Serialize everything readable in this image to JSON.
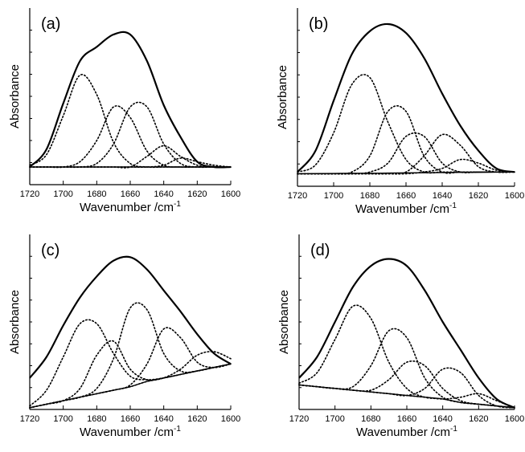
{
  "chart_data": [
    {
      "type": "line",
      "label": "(a)",
      "xlabel": "Wavenumber /cm",
      "xlabel_exponent": "-1",
      "ylabel": "Absorbance",
      "x": [
        1720,
        1710,
        1700,
        1690,
        1680,
        1670,
        1660,
        1650,
        1640,
        1630,
        1620,
        1610,
        1600
      ],
      "xlim": [
        1720,
        1600
      ],
      "xticks": [
        1720,
        1700,
        1680,
        1660,
        1640,
        1620,
        1600
      ],
      "ylim": [
        0,
        1
      ],
      "series": [
        {
          "color": "#000000",
          "dash": "solid",
          "width": 2.2,
          "values": [
            0.1,
            0.2,
            0.46,
            0.7,
            0.78,
            0.85,
            0.85,
            0.7,
            0.45,
            0.27,
            0.13,
            0.1,
            0.1
          ]
        },
        {
          "color": "#000000",
          "dash": "solid",
          "width": 1.4,
          "values": [
            0.1,
            0.1,
            0.1,
            0.1,
            0.1,
            0.1,
            0.1,
            0.1,
            0.1,
            0.1,
            0.1,
            0.1,
            0.1
          ]
        },
        {
          "color": "#000000",
          "dash": "dotted",
          "width": 1.6,
          "values": [
            0.11,
            0.17,
            0.39,
            0.62,
            0.51,
            0.24,
            0.12,
            0.1,
            0.1,
            0.1,
            0.1,
            0.1,
            0.1
          ]
        },
        {
          "color": "#000000",
          "dash": "dotted",
          "width": 1.6,
          "values": [
            0.1,
            0.1,
            0.1,
            0.13,
            0.25,
            0.44,
            0.38,
            0.19,
            0.11,
            0.1,
            0.1,
            0.1,
            0.1
          ]
        },
        {
          "color": "#000000",
          "dash": "dotted",
          "width": 1.6,
          "values": [
            0.1,
            0.1,
            0.1,
            0.1,
            0.12,
            0.23,
            0.44,
            0.44,
            0.23,
            0.12,
            0.1,
            0.1,
            0.1
          ]
        },
        {
          "color": "#000000",
          "dash": "dotted",
          "width": 1.6,
          "values": [
            0.1,
            0.1,
            0.1,
            0.1,
            0.1,
            0.1,
            0.1,
            0.16,
            0.22,
            0.16,
            0.11,
            0.1,
            0.1
          ]
        },
        {
          "color": "#000000",
          "dash": "dotted",
          "width": 1.6,
          "values": [
            0.1,
            0.1,
            0.1,
            0.1,
            0.1,
            0.1,
            0.1,
            0.1,
            0.11,
            0.15,
            0.13,
            0.11,
            0.1
          ]
        }
      ]
    },
    {
      "type": "line",
      "label": "(b)",
      "xlabel": "Wavenumber /cm",
      "xlabel_exponent": "-1",
      "ylabel": "Absorbance",
      "x": [
        1720,
        1710,
        1700,
        1690,
        1680,
        1670,
        1660,
        1650,
        1640,
        1630,
        1620,
        1610,
        1600
      ],
      "xlim": [
        1720,
        1600
      ],
      "xticks": [
        1720,
        1700,
        1680,
        1660,
        1640,
        1620,
        1600
      ],
      "ylim": [
        0,
        1
      ],
      "series": [
        {
          "color": "#000000",
          "dash": "solid",
          "width": 2.2,
          "values": [
            0.08,
            0.2,
            0.48,
            0.74,
            0.87,
            0.91,
            0.86,
            0.72,
            0.52,
            0.34,
            0.2,
            0.1,
            0.08
          ]
        },
        {
          "color": "#000000",
          "dash": "solid",
          "width": 1.4,
          "values": [
            0.07,
            0.071,
            0.072,
            0.073,
            0.073,
            0.074,
            0.075,
            0.076,
            0.077,
            0.078,
            0.078,
            0.079,
            0.08
          ]
        },
        {
          "color": "#000000",
          "dash": "dotted",
          "width": 1.6,
          "values": [
            0.08,
            0.12,
            0.3,
            0.57,
            0.61,
            0.36,
            0.15,
            0.08,
            0.08,
            0.08,
            0.08,
            0.08,
            0.08
          ]
        },
        {
          "color": "#000000",
          "dash": "dotted",
          "width": 1.6,
          "values": [
            0.07,
            0.07,
            0.07,
            0.08,
            0.17,
            0.42,
            0.42,
            0.17,
            0.08,
            0.08,
            0.08,
            0.08,
            0.08
          ]
        },
        {
          "color": "#000000",
          "dash": "dotted",
          "width": 1.6,
          "values": [
            0.07,
            0.07,
            0.07,
            0.07,
            0.08,
            0.13,
            0.28,
            0.28,
            0.13,
            0.08,
            0.08,
            0.08,
            0.08
          ]
        },
        {
          "color": "#000000",
          "dash": "dotted",
          "width": 1.6,
          "values": [
            0.07,
            0.07,
            0.07,
            0.07,
            0.07,
            0.07,
            0.08,
            0.17,
            0.29,
            0.23,
            0.11,
            0.08,
            0.08
          ]
        },
        {
          "color": "#000000",
          "dash": "dotted",
          "width": 1.6,
          "values": [
            0.07,
            0.07,
            0.07,
            0.07,
            0.07,
            0.07,
            0.07,
            0.08,
            0.1,
            0.15,
            0.13,
            0.09,
            0.08
          ]
        }
      ]
    },
    {
      "type": "line",
      "label": "(c)",
      "xlabel": "Wavenumber /cm",
      "xlabel_exponent": "-1",
      "ylabel": "Absorbance",
      "x": [
        1720,
        1710,
        1700,
        1690,
        1680,
        1670,
        1660,
        1650,
        1640,
        1630,
        1620,
        1610,
        1600
      ],
      "xlim": [
        1720,
        1600
      ],
      "xticks": [
        1720,
        1700,
        1680,
        1660,
        1640,
        1620,
        1600
      ],
      "ylim": [
        0,
        1
      ],
      "series": [
        {
          "color": "#000000",
          "dash": "solid",
          "width": 2.2,
          "values": [
            0.18,
            0.3,
            0.48,
            0.64,
            0.76,
            0.85,
            0.87,
            0.8,
            0.68,
            0.56,
            0.43,
            0.32,
            0.26
          ]
        },
        {
          "color": "#000000",
          "dash": "solid",
          "width": 1.4,
          "values": [
            0.01,
            0.03,
            0.05,
            0.07,
            0.09,
            0.11,
            0.13,
            0.16,
            0.18,
            0.2,
            0.22,
            0.24,
            0.26
          ]
        },
        {
          "color": "#000000",
          "dash": "dotted",
          "width": 1.6,
          "values": [
            0.02,
            0.11,
            0.3,
            0.49,
            0.49,
            0.32,
            0.19,
            0.17,
            0.18,
            0.2,
            0.22,
            0.24,
            0.26
          ]
        },
        {
          "color": "#000000",
          "dash": "dotted",
          "width": 1.6,
          "values": [
            0.01,
            0.03,
            0.05,
            0.12,
            0.31,
            0.39,
            0.23,
            0.17,
            0.18,
            0.2,
            0.22,
            0.24,
            0.26
          ]
        },
        {
          "color": "#000000",
          "dash": "dotted",
          "width": 1.6,
          "values": [
            0.01,
            0.03,
            0.05,
            0.07,
            0.12,
            0.29,
            0.58,
            0.57,
            0.32,
            0.22,
            0.22,
            0.24,
            0.26
          ]
        },
        {
          "color": "#000000",
          "dash": "dotted",
          "width": 1.6,
          "values": [
            0.01,
            0.03,
            0.05,
            0.07,
            0.09,
            0.11,
            0.14,
            0.26,
            0.46,
            0.41,
            0.27,
            0.24,
            0.26
          ]
        },
        {
          "color": "#000000",
          "dash": "dotted",
          "width": 1.6,
          "values": [
            0.01,
            0.03,
            0.05,
            0.07,
            0.09,
            0.11,
            0.13,
            0.16,
            0.18,
            0.23,
            0.31,
            0.33,
            0.29
          ]
        }
      ]
    },
    {
      "type": "line",
      "label": "(d)",
      "xlabel": "Wavenumber /cm",
      "xlabel_exponent": "-1",
      "ylabel": "Absorbance",
      "x": [
        1720,
        1710,
        1700,
        1690,
        1680,
        1670,
        1660,
        1650,
        1640,
        1630,
        1620,
        1610,
        1600
      ],
      "xlim": [
        1720,
        1600
      ],
      "xticks": [
        1720,
        1700,
        1680,
        1660,
        1640,
        1620,
        1600
      ],
      "ylim": [
        0,
        1
      ],
      "series": [
        {
          "color": "#000000",
          "dash": "solid",
          "width": 2.2,
          "values": [
            0.18,
            0.3,
            0.5,
            0.7,
            0.82,
            0.86,
            0.82,
            0.68,
            0.5,
            0.34,
            0.18,
            0.06,
            0.01
          ]
        },
        {
          "color": "#000000",
          "dash": "solid",
          "width": 1.4,
          "values": [
            0.14,
            0.13,
            0.12,
            0.11,
            0.1,
            0.09,
            0.08,
            0.07,
            0.06,
            0.04,
            0.03,
            0.02,
            0.01
          ]
        },
        {
          "color": "#000000",
          "dash": "dotted",
          "width": 1.6,
          "values": [
            0.15,
            0.21,
            0.4,
            0.59,
            0.52,
            0.27,
            0.12,
            0.07,
            0.06,
            0.04,
            0.03,
            0.02,
            0.01
          ]
        },
        {
          "color": "#000000",
          "dash": "dotted",
          "width": 1.6,
          "values": [
            0.14,
            0.13,
            0.12,
            0.13,
            0.25,
            0.45,
            0.41,
            0.18,
            0.07,
            0.04,
            0.03,
            0.02,
            0.01
          ]
        },
        {
          "color": "#000000",
          "dash": "dotted",
          "width": 1.6,
          "values": [
            0.14,
            0.13,
            0.12,
            0.11,
            0.11,
            0.17,
            0.27,
            0.25,
            0.12,
            0.05,
            0.03,
            0.02,
            0.01
          ]
        },
        {
          "color": "#000000",
          "dash": "dotted",
          "width": 1.6,
          "values": [
            0.14,
            0.13,
            0.12,
            0.11,
            0.1,
            0.09,
            0.08,
            0.12,
            0.23,
            0.21,
            0.08,
            0.02,
            0.01
          ]
        },
        {
          "color": "#000000",
          "dash": "dotted",
          "width": 1.6,
          "values": [
            0.14,
            0.13,
            0.12,
            0.11,
            0.1,
            0.09,
            0.08,
            0.07,
            0.06,
            0.07,
            0.09,
            0.05,
            0.01
          ]
        }
      ]
    }
  ]
}
